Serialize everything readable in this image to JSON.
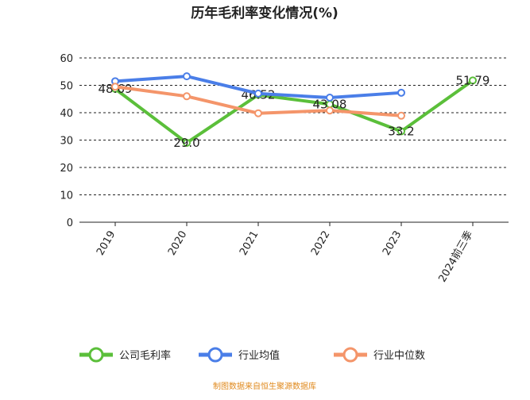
{
  "chart_data": {
    "type": "line",
    "title": "历年毛利率变化情况(%)",
    "categories": [
      "2019",
      "2020",
      "2021",
      "2022",
      "2023",
      "2024前三季"
    ],
    "series": [
      {
        "name": "公司毛利率",
        "color": "#5bbf3a",
        "values": [
          48.69,
          29.0,
          46.52,
          43.08,
          33.2,
          51.79
        ],
        "value_labels": [
          "48.69",
          "29.0",
          "46.52",
          "43.08",
          "33.2",
          "51.79"
        ]
      },
      {
        "name": "行业均值",
        "color": "#4a7ee8",
        "values": [
          51.5,
          53.3,
          47.0,
          45.5,
          47.3,
          null
        ]
      },
      {
        "name": "行业中位数",
        "color": "#f4956a",
        "values": [
          49.5,
          46.0,
          39.8,
          40.8,
          38.9,
          null
        ]
      }
    ],
    "ylim": [
      0,
      60
    ],
    "yticks": [
      0,
      10,
      20,
      30,
      40,
      50,
      60
    ],
    "grid": true,
    "source": "制图数据来自恒生聚源数据库"
  }
}
